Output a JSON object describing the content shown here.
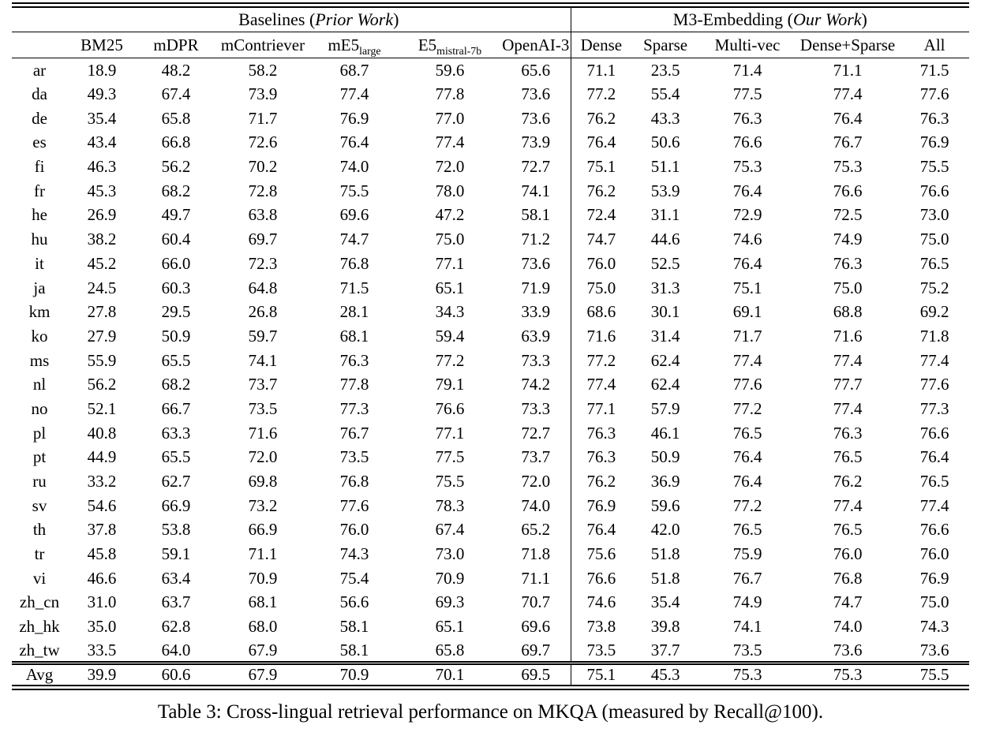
{
  "caption": "Table 3: Cross-lingual retrieval performance on MKQA (measured by Recall@100).",
  "table": {
    "groups": [
      {
        "name": "Baselines",
        "qualifier": "Prior Work"
      },
      {
        "name": "M3-Embedding",
        "qualifier": "Our Work"
      }
    ],
    "left_columns": [
      {
        "label": "BM25"
      },
      {
        "label": "mDPR"
      },
      {
        "label": "mContriever"
      },
      {
        "label": "mE5",
        "sub": "large"
      },
      {
        "label": "E5",
        "sub": "mistral-7b"
      },
      {
        "label": "OpenAI-3"
      }
    ],
    "right_columns": [
      {
        "label": "Dense"
      },
      {
        "label": "Sparse"
      },
      {
        "label": "Multi-vec"
      },
      {
        "label": "Dense+Sparse"
      },
      {
        "label": "All"
      }
    ],
    "rows": [
      {
        "lang": "ar",
        "left": [
          "18.9",
          "48.2",
          "58.2",
          "68.7",
          "59.6",
          "65.6"
        ],
        "left_bold": [],
        "right": [
          "71.1",
          "23.5",
          "71.4",
          "71.1",
          "71.5"
        ],
        "right_bold": [
          4
        ]
      },
      {
        "lang": "da",
        "left": [
          "49.3",
          "67.4",
          "73.9",
          "77.4",
          "77.8",
          "73.6"
        ],
        "left_bold": [
          4
        ],
        "right": [
          "77.2",
          "55.4",
          "77.5",
          "77.4",
          "77.6"
        ],
        "right_bold": []
      },
      {
        "lang": "de",
        "left": [
          "35.4",
          "65.8",
          "71.7",
          "76.9",
          "77.0",
          "73.6"
        ],
        "left_bold": [
          4
        ],
        "right": [
          "76.2",
          "43.3",
          "76.3",
          "76.4",
          "76.3"
        ],
        "right_bold": []
      },
      {
        "lang": "es",
        "left": [
          "43.4",
          "66.8",
          "72.6",
          "76.4",
          "77.4",
          "73.9"
        ],
        "left_bold": [
          4
        ],
        "right": [
          "76.4",
          "50.6",
          "76.6",
          "76.7",
          "76.9"
        ],
        "right_bold": []
      },
      {
        "lang": "fi",
        "left": [
          "46.3",
          "56.2",
          "70.2",
          "74.0",
          "72.0",
          "72.7"
        ],
        "left_bold": [],
        "right": [
          "75.1",
          "51.1",
          "75.3",
          "75.3",
          "75.5"
        ],
        "right_bold": [
          4
        ]
      },
      {
        "lang": "fr",
        "left": [
          "45.3",
          "68.2",
          "72.8",
          "75.5",
          "78.0",
          "74.1"
        ],
        "left_bold": [
          4
        ],
        "right": [
          "76.2",
          "53.9",
          "76.4",
          "76.6",
          "76.6"
        ],
        "right_bold": []
      },
      {
        "lang": "he",
        "left": [
          "26.9",
          "49.7",
          "63.8",
          "69.6",
          "47.2",
          "58.1"
        ],
        "left_bold": [],
        "right": [
          "72.4",
          "31.1",
          "72.9",
          "72.5",
          "73.0"
        ],
        "right_bold": [
          4
        ]
      },
      {
        "lang": "hu",
        "left": [
          "38.2",
          "60.4",
          "69.7",
          "74.7",
          "75.0",
          "71.2"
        ],
        "left_bold": [
          4
        ],
        "right": [
          "74.7",
          "44.6",
          "74.6",
          "74.9",
          "75.0"
        ],
        "right_bold": [
          4
        ]
      },
      {
        "lang": "it",
        "left": [
          "45.2",
          "66.0",
          "72.3",
          "76.8",
          "77.1",
          "73.6"
        ],
        "left_bold": [
          4
        ],
        "right": [
          "76.0",
          "52.5",
          "76.4",
          "76.3",
          "76.5"
        ],
        "right_bold": []
      },
      {
        "lang": "ja",
        "left": [
          "24.5",
          "60.3",
          "64.8",
          "71.5",
          "65.1",
          "71.9"
        ],
        "left_bold": [],
        "right": [
          "75.0",
          "31.3",
          "75.1",
          "75.0",
          "75.2"
        ],
        "right_bold": [
          4
        ]
      },
      {
        "lang": "km",
        "left": [
          "27.8",
          "29.5",
          "26.8",
          "28.1",
          "34.3",
          "33.9"
        ],
        "left_bold": [],
        "right": [
          "68.6",
          "30.1",
          "69.1",
          "68.8",
          "69.2"
        ],
        "right_bold": [
          4
        ]
      },
      {
        "lang": "ko",
        "left": [
          "27.9",
          "50.9",
          "59.7",
          "68.1",
          "59.4",
          "63.9"
        ],
        "left_bold": [],
        "right": [
          "71.6",
          "31.4",
          "71.7",
          "71.6",
          "71.8"
        ],
        "right_bold": [
          4
        ]
      },
      {
        "lang": "ms",
        "left": [
          "55.9",
          "65.5",
          "74.1",
          "76.3",
          "77.2",
          "73.3"
        ],
        "left_bold": [],
        "right": [
          "77.2",
          "62.4",
          "77.4",
          "77.4",
          "77.4"
        ],
        "right_bold": [
          2,
          3,
          4
        ]
      },
      {
        "lang": "nl",
        "left": [
          "56.2",
          "68.2",
          "73.7",
          "77.8",
          "79.1",
          "74.2"
        ],
        "left_bold": [
          4
        ],
        "right": [
          "77.4",
          "62.4",
          "77.6",
          "77.7",
          "77.6"
        ],
        "right_bold": []
      },
      {
        "lang": "no",
        "left": [
          "52.1",
          "66.7",
          "73.5",
          "77.3",
          "76.6",
          "73.3"
        ],
        "left_bold": [],
        "right": [
          "77.1",
          "57.9",
          "77.2",
          "77.4",
          "77.3"
        ],
        "right_bold": [
          3
        ]
      },
      {
        "lang": "pl",
        "left": [
          "40.8",
          "63.3",
          "71.6",
          "76.7",
          "77.1",
          "72.7"
        ],
        "left_bold": [
          4
        ],
        "right": [
          "76.3",
          "46.1",
          "76.5",
          "76.3",
          "76.6"
        ],
        "right_bold": []
      },
      {
        "lang": "pt",
        "left": [
          "44.9",
          "65.5",
          "72.0",
          "73.5",
          "77.5",
          "73.7"
        ],
        "left_bold": [
          4
        ],
        "right": [
          "76.3",
          "50.9",
          "76.4",
          "76.5",
          "76.4"
        ],
        "right_bold": []
      },
      {
        "lang": "ru",
        "left": [
          "33.2",
          "62.7",
          "69.8",
          "76.8",
          "75.5",
          "72.0"
        ],
        "left_bold": [
          3
        ],
        "right": [
          "76.2",
          "36.9",
          "76.4",
          "76.2",
          "76.5"
        ],
        "right_bold": []
      },
      {
        "lang": "sv",
        "left": [
          "54.6",
          "66.9",
          "73.2",
          "77.6",
          "78.3",
          "74.0"
        ],
        "left_bold": [
          4
        ],
        "right": [
          "76.9",
          "59.6",
          "77.2",
          "77.4",
          "77.4"
        ],
        "right_bold": []
      },
      {
        "lang": "th",
        "left": [
          "37.8",
          "53.8",
          "66.9",
          "76.0",
          "67.4",
          "65.2"
        ],
        "left_bold": [],
        "right": [
          "76.4",
          "42.0",
          "76.5",
          "76.5",
          "76.6"
        ],
        "right_bold": [
          4
        ]
      },
      {
        "lang": "tr",
        "left": [
          "45.8",
          "59.1",
          "71.1",
          "74.3",
          "73.0",
          "71.8"
        ],
        "left_bold": [],
        "right": [
          "75.6",
          "51.8",
          "75.9",
          "76.0",
          "76.0"
        ],
        "right_bold": [
          3,
          4
        ]
      },
      {
        "lang": "vi",
        "left": [
          "46.6",
          "63.4",
          "70.9",
          "75.4",
          "70.9",
          "71.1"
        ],
        "left_bold": [],
        "right": [
          "76.6",
          "51.8",
          "76.7",
          "76.8",
          "76.9"
        ],
        "right_bold": [
          4
        ]
      },
      {
        "lang": "zh_cn",
        "left": [
          "31.0",
          "63.7",
          "68.1",
          "56.6",
          "69.3",
          "70.7"
        ],
        "left_bold": [],
        "right": [
          "74.6",
          "35.4",
          "74.9",
          "74.7",
          "75.0"
        ],
        "right_bold": [
          4
        ]
      },
      {
        "lang": "zh_hk",
        "left": [
          "35.0",
          "62.8",
          "68.0",
          "58.1",
          "65.1",
          "69.6"
        ],
        "left_bold": [],
        "right": [
          "73.8",
          "39.8",
          "74.1",
          "74.0",
          "74.3"
        ],
        "right_bold": [
          4
        ]
      },
      {
        "lang": "zh_tw",
        "left": [
          "33.5",
          "64.0",
          "67.9",
          "58.1",
          "65.8",
          "69.7"
        ],
        "left_bold": [],
        "right": [
          "73.5",
          "37.7",
          "73.5",
          "73.6",
          "73.6"
        ],
        "right_bold": [
          3,
          4
        ]
      }
    ],
    "avg_row": {
      "lang": "Avg",
      "left": [
        "39.9",
        "60.6",
        "67.9",
        "70.9",
        "70.1",
        "69.5"
      ],
      "left_bold": [],
      "right": [
        "75.1",
        "45.3",
        "75.3",
        "75.3",
        "75.5"
      ],
      "right_bold": [
        4
      ]
    }
  }
}
